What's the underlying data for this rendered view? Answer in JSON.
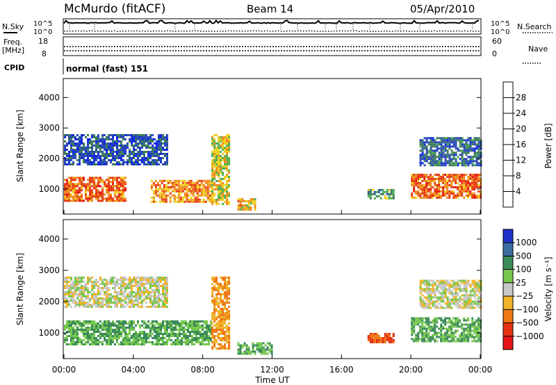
{
  "header": {
    "station": "McMurdo (fitACF)",
    "beam": "Beam 14",
    "date": "05/Apr/2010"
  },
  "top_panels": {
    "nsky_label": "N.Sky",
    "nsky_ticks": [
      "10^5",
      "10^0"
    ],
    "nsearch_label": "N.Search",
    "nsearch_ticks": [
      "10^5",
      "10^0"
    ],
    "freq_label_1": "Freq.",
    "freq_label_2": "[MHz]",
    "freq_ticks": [
      "18",
      "8"
    ],
    "nave_label": "Nave",
    "nave_ticks": [
      "60",
      "0"
    ],
    "cpid_label": "CPID",
    "cpid_value": "normal (fast) 151"
  },
  "chart_data": [
    {
      "type": "heatmap",
      "panel": "power",
      "xlabel": "",
      "ylabel": "Slant Range [km]",
      "y_ticks": [
        "1000",
        "2000",
        "3000",
        "4000"
      ],
      "ylim": [
        200,
        4600
      ],
      "colorbar": {
        "label": "Power [dB]",
        "ticks": [
          "4",
          "8",
          "12",
          "16",
          "20",
          "24",
          "28"
        ],
        "colors": [
          "#1428e6",
          "#2a4ab8",
          "#3c7c5c",
          "#50b050",
          "#f0d020",
          "#f08c1e",
          "#e63c14",
          "#e61414"
        ]
      },
      "echo_regions": [
        {
          "t_start": 0.0,
          "t_end": 3.5,
          "r_min": 600,
          "r_max": 1400,
          "db": 24
        },
        {
          "t_start": 0.0,
          "t_end": 6.0,
          "r_min": 1800,
          "r_max": 2800,
          "db": 6
        },
        {
          "t_start": 5.0,
          "t_end": 8.5,
          "r_min": 600,
          "r_max": 1300,
          "db": 22
        },
        {
          "t_start": 8.5,
          "t_end": 9.5,
          "r_min": 500,
          "r_max": 2800,
          "db": 18
        },
        {
          "t_start": 10.0,
          "t_end": 11.0,
          "r_min": 300,
          "r_max": 700,
          "db": 20
        },
        {
          "t_start": 17.5,
          "t_end": 19.0,
          "r_min": 700,
          "r_max": 1000,
          "db": 12
        },
        {
          "t_start": 20.0,
          "t_end": 24.0,
          "r_min": 700,
          "r_max": 1500,
          "db": 24
        },
        {
          "t_start": 20.5,
          "t_end": 24.0,
          "r_min": 1800,
          "r_max": 2700,
          "db": 8
        }
      ]
    },
    {
      "type": "heatmap",
      "panel": "velocity",
      "xlabel": "Time UT",
      "ylabel": "Slant Range [km]",
      "x_ticks": [
        "00:00",
        "04:00",
        "08:00",
        "12:00",
        "16:00",
        "20:00",
        "00:00"
      ],
      "xlim": [
        0,
        24
      ],
      "y_ticks": [
        "1000",
        "2000",
        "3000",
        "4000"
      ],
      "ylim": [
        200,
        4600
      ],
      "colorbar": {
        "label": "Velocity [m s⁻¹]",
        "ticks": [
          "1000",
          "500",
          "100",
          "25",
          "−25",
          "−100",
          "−500",
          "−1000"
        ],
        "colors": [
          "#2032c8",
          "#3c6ea0",
          "#3c8c5a",
          "#78c850",
          "#c8c8c8",
          "#f0b428",
          "#f07814",
          "#e63214",
          "#e61414"
        ]
      },
      "echo_regions": [
        {
          "t_start": 0.0,
          "t_end": 8.5,
          "r_min": 600,
          "r_max": 1400,
          "v": 100
        },
        {
          "t_start": 0.0,
          "t_end": 6.0,
          "r_min": 1800,
          "r_max": 2800,
          "v": 0
        },
        {
          "t_start": 8.5,
          "t_end": 9.5,
          "r_min": 500,
          "r_max": 2800,
          "v": -100
        },
        {
          "t_start": 10.0,
          "t_end": 12.0,
          "r_min": 300,
          "r_max": 700,
          "v": 100
        },
        {
          "t_start": 17.5,
          "t_end": 19.0,
          "r_min": 700,
          "r_max": 1000,
          "v": -500
        },
        {
          "t_start": 20.0,
          "t_end": 24.0,
          "r_min": 700,
          "r_max": 1500,
          "v": 100
        },
        {
          "t_start": 20.5,
          "t_end": 24.0,
          "r_min": 1800,
          "r_max": 2700,
          "v": 0
        }
      ]
    }
  ]
}
